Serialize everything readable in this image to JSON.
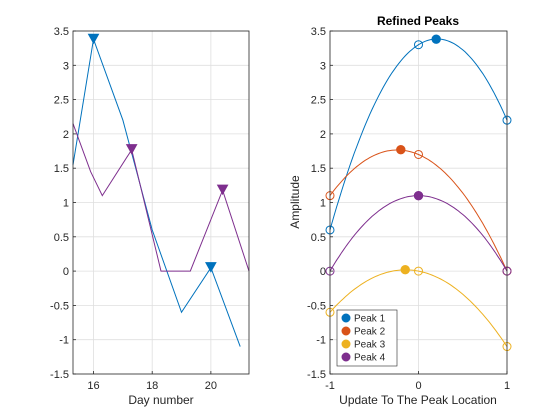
{
  "chart_data": [
    {
      "type": "line",
      "title": "",
      "xlabel": "Day number",
      "ylabel": "",
      "xlim": [
        15.3,
        21.3
      ],
      "ylim": [
        -1.5,
        3.5
      ],
      "xticks": [
        "16",
        "18",
        "20"
      ],
      "yticks": [
        "-1.5",
        "-1",
        "-0.5",
        "0",
        "0.5",
        "1",
        "1.5",
        "2",
        "2.5",
        "3",
        "3.5"
      ],
      "grid": true,
      "series": [
        {
          "color": "#0072BD",
          "x": [
            15.3,
            16,
            17,
            18,
            19,
            20,
            21
          ],
          "y": [
            1.55,
            3.38,
            2.2,
            0.6,
            -0.6,
            0.05,
            -1.1
          ],
          "peaks": [
            {
              "x": 16,
              "y": 3.38
            },
            {
              "x": 20,
              "y": 0.05
            }
          ]
        },
        {
          "color": "#7E2F8E",
          "x": [
            15.3,
            15.9,
            16.3,
            17.3,
            18.3,
            19.3,
            20.4,
            21.3
          ],
          "y": [
            2.15,
            1.45,
            1.1,
            1.77,
            0.0,
            0.0,
            1.18,
            0.0
          ],
          "peaks": [
            {
              "x": 17.3,
              "y": 1.77
            },
            {
              "x": 20.4,
              "y": 1.18
            }
          ]
        }
      ]
    },
    {
      "type": "line",
      "title": "Refined Peaks",
      "xlabel": "Update To The Peak Location",
      "ylabel": "Amplitude",
      "xlim": [
        -1,
        1
      ],
      "ylim": [
        -1.5,
        3.5
      ],
      "xticks": [
        "-1",
        "0",
        "1"
      ],
      "yticks": [
        "-1.5",
        "-1",
        "-0.5",
        "0",
        "0.5",
        "1",
        "1.5",
        "2",
        "2.5",
        "3",
        "3.5"
      ],
      "grid": true,
      "legend_position": "bottom-left",
      "series": [
        {
          "name": "Peak 1",
          "color": "#0072BD",
          "samples": {
            "x": [
              -1,
              0,
              1
            ],
            "y": [
              0.6,
              3.3,
              2.2
            ]
          },
          "peak": {
            "x": 0.2,
            "y": 3.38
          }
        },
        {
          "name": "Peak 2",
          "color": "#D95319",
          "samples": {
            "x": [
              -1,
              0,
              1
            ],
            "y": [
              1.1,
              1.7,
              0.0
            ]
          },
          "peak": {
            "x": -0.2,
            "y": 1.77
          }
        },
        {
          "name": "Peak 3",
          "color": "#EDB120",
          "samples": {
            "x": [
              -1,
              0,
              1
            ],
            "y": [
              -0.6,
              0.0,
              -1.1
            ]
          },
          "peak": {
            "x": -0.15,
            "y": 0.02
          }
        },
        {
          "name": "Peak 4",
          "color": "#7E2F8E",
          "samples": {
            "x": [
              -1,
              0,
              1
            ],
            "y": [
              0.0,
              1.1,
              0.0
            ]
          },
          "peak": {
            "x": 0.0,
            "y": 1.1
          }
        }
      ]
    }
  ]
}
